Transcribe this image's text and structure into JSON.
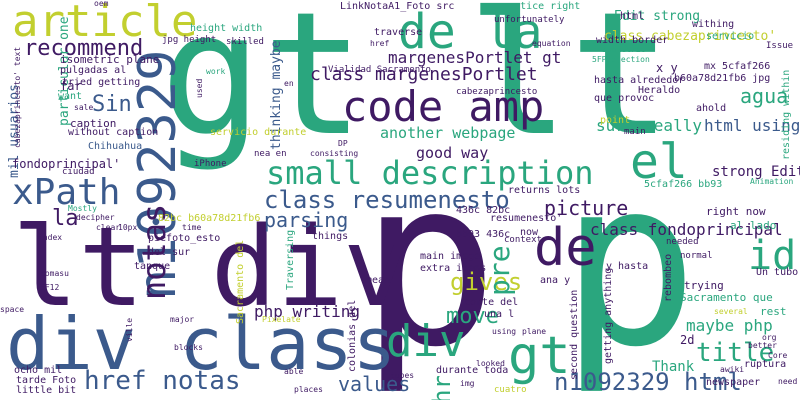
{
  "words": [
    {
      "text": "gt lt",
      "color": "#2aa67e",
      "rotate": 0,
      "bold": false
    },
    {
      "text": "p",
      "color": "#3f1a63",
      "rotate": 0,
      "bold": false
    },
    {
      "text": "p",
      "color": "#2aa67e",
      "rotate": 0,
      "bold": false
    },
    {
      "text": "lt div",
      "color": "#3f1a63",
      "rotate": 0,
      "bold": false
    },
    {
      "text": "div class",
      "color": "#3b5a8c",
      "rotate": 0,
      "bold": false
    },
    {
      "text": "code amp",
      "color": "#3f1a63",
      "rotate": 0,
      "bold": false
    },
    {
      "text": "de la",
      "color": "#2aa67e",
      "rotate": 0,
      "bold": false
    },
    {
      "text": "article",
      "color": "#c2cf2f",
      "rotate": 0,
      "bold": false
    },
    {
      "text": "n1092329",
      "color": "#3b5a8c",
      "rotate": -90,
      "bold": false
    },
    {
      "text": "notas",
      "color": "#3f1a63",
      "rotate": -90,
      "bold": false
    },
    {
      "text": "xPath",
      "color": "#3b5a8c",
      "rotate": 0,
      "bold": false
    },
    {
      "text": "small description",
      "color": "#2aa67e",
      "rotate": 0,
      "bold": false
    },
    {
      "text": "el",
      "color": "#2aa67e",
      "rotate": 0,
      "bold": false
    },
    {
      "text": "class resumenesto",
      "color": "#3b5a8c",
      "rotate": 0,
      "bold": false
    },
    {
      "text": "de",
      "color": "#3f1a63",
      "rotate": 0,
      "bold": false
    },
    {
      "text": "id",
      "color": "#2aa67e",
      "rotate": 0,
      "bold": false
    },
    {
      "text": "div",
      "color": "#2aa67e",
      "rotate": 0,
      "bold": false
    },
    {
      "text": "gt",
      "color": "#2aa67e",
      "rotate": 0,
      "bold": false
    },
    {
      "text": "href notas",
      "color": "#3b5a8c",
      "rotate": 0,
      "bold": false
    },
    {
      "text": "n1092329 html",
      "color": "#3b5a8c",
      "rotate": 0,
      "bold": false
    },
    {
      "text": "recommend",
      "color": "#3f1a63",
      "rotate": 0,
      "bold": false
    },
    {
      "text": "class margenesPortlet",
      "color": "#3f1a63",
      "rotate": 0,
      "bold": false
    },
    {
      "text": "margenesPortlet gt",
      "color": "#3f1a63",
      "rotate": 0,
      "bold": false
    },
    {
      "text": "Sin",
      "color": "#3b5a8c",
      "rotate": 0,
      "bold": false
    },
    {
      "text": "agua",
      "color": "#2aa67e",
      "rotate": 0,
      "bold": false
    },
    {
      "text": "la",
      "color": "#3f1a63",
      "rotate": 0,
      "bold": false
    },
    {
      "text": "parsing",
      "color": "#3b5a8c",
      "rotate": 0,
      "bold": false
    },
    {
      "text": "picture",
      "color": "#3f1a63",
      "rotate": 0,
      "bold": false
    },
    {
      "text": "class fondoprincipal",
      "color": "#3f1a63",
      "rotate": 0,
      "bold": false
    },
    {
      "text": "gives",
      "color": "#c2cf2f",
      "rotate": 0,
      "bold": false
    },
    {
      "text": "pre",
      "color": "#2aa67e",
      "rotate": -90,
      "bold": false
    },
    {
      "text": "move",
      "color": "#2aa67e",
      "rotate": 0,
      "bold": false
    },
    {
      "text": "hr",
      "color": "#2aa67e",
      "rotate": -90,
      "bold": false
    },
    {
      "text": "title",
      "color": "#2aa67e",
      "rotate": 0,
      "bold": false
    },
    {
      "text": "values",
      "color": "#3b5a8c",
      "rotate": 0,
      "bold": false
    },
    {
      "text": "php writing",
      "color": "#3f1a63",
      "rotate": 0,
      "bold": false
    },
    {
      "text": "maybe php",
      "color": "#2aa67e",
      "rotate": 0,
      "bold": false
    },
    {
      "text": "html using",
      "color": "#3b5a8c",
      "rotate": 0,
      "bold": false
    },
    {
      "text": "sure really",
      "color": "#2aa67e",
      "rotate": 0,
      "bold": false
    },
    {
      "text": "another webpage",
      "color": "#2aa67e",
      "rotate": 0,
      "bold": false
    },
    {
      "text": "good way",
      "color": "#3f1a63",
      "rotate": 0,
      "bold": false
    },
    {
      "text": "strong Edit",
      "color": "#3f1a63",
      "rotate": 0,
      "bold": false
    },
    {
      "text": "Edit strong",
      "color": "#2aa67e",
      "rotate": 0,
      "bold": false
    },
    {
      "text": "mil usuarios",
      "color": "#3b5a8c",
      "rotate": -90,
      "bold": false
    },
    {
      "text": "particular one",
      "color": "#2aa67e",
      "rotate": -90,
      "bold": false
    },
    {
      "text": "fondoprincipal'",
      "color": "#3f1a63",
      "rotate": 0,
      "bold": false
    },
    {
      "text": "class cabezaprincesto'",
      "color": "#c2cf2f",
      "rotate": 0,
      "bold": false
    },
    {
      "text": "thinking maybe",
      "color": "#3b5a8c",
      "rotate": -90,
      "bold": false
    },
    {
      "text": "far",
      "color": "#3f1a63",
      "rotate": 0,
      "bold": false
    },
    {
      "text": "want",
      "color": "#2aa67e",
      "rotate": 0,
      "bold": false
    },
    {
      "text": "caption",
      "color": "#3f1a63",
      "rotate": 0,
      "bold": false
    },
    {
      "text": "Thank",
      "color": "#2aa67e",
      "rotate": 0,
      "bold": false
    },
    {
      "text": "2d",
      "color": "#3f1a63",
      "rotate": 0,
      "bold": false
    },
    {
      "text": "rest",
      "color": "#2aa67e",
      "rotate": 0,
      "bold": false
    },
    {
      "text": "trying",
      "color": "#3f1a63",
      "rotate": 0,
      "bold": false
    },
    {
      "text": "right now",
      "color": "#3f1a63",
      "rotate": 0,
      "bold": false
    },
    {
      "text": "al lado",
      "color": "#2aa67e",
      "rotate": 0,
      "bold": false
    },
    {
      "text": "Sacramento que",
      "color": "#2aa67e",
      "rotate": 0,
      "bold": false
    },
    {
      "text": "LinkNotaA1_Foto src",
      "color": "#3f1a63",
      "rotate": 0,
      "bold": false
    },
    {
      "text": "practice right",
      "color": "#2aa67e",
      "rotate": 0,
      "bold": false
    },
    {
      "text": "unfortunately",
      "color": "#3f1a63",
      "rotate": 0,
      "bold": false
    },
    {
      "text": "height width",
      "color": "#2aa67e",
      "rotate": 0,
      "bold": false
    },
    {
      "text": "isometric plane",
      "color": "#3f1a63",
      "rotate": 0,
      "bold": false
    },
    {
      "text": "pulgadas al",
      "color": "#3f1a63",
      "rotate": 0,
      "bold": false
    },
    {
      "text": "tried getting",
      "color": "#3f1a63",
      "rotate": 0,
      "bold": false
    },
    {
      "text": "without caption",
      "color": "#3f1a63",
      "rotate": 0,
      "bold": false
    },
    {
      "text": "Chihuahua",
      "color": "#3b5a8c",
      "rotate": 0,
      "bold": false
    },
    {
      "text": "servicio durante",
      "color": "#c2cf2f",
      "rotate": 0,
      "bold": false
    },
    {
      "text": "iPhone",
      "color": "#3f1a63",
      "rotate": 0,
      "bold": false
    },
    {
      "text": "nea en",
      "color": "#3f1a63",
      "rotate": 0,
      "bold": false
    },
    {
      "text": "traverse",
      "color": "#3f1a63",
      "rotate": 0,
      "bold": false
    },
    {
      "text": "Vialidad Sacramento",
      "color": "#3f1a63",
      "rotate": 0,
      "bold": false
    },
    {
      "text": "cabezaprincesto",
      "color": "#3f1a63",
      "rotate": 0,
      "bold": false
    },
    {
      "text": "que provoc",
      "color": "#3f1a63",
      "rotate": 0,
      "bold": false
    },
    {
      "text": "hasta alrededor",
      "color": "#3f1a63",
      "rotate": 0,
      "bold": false
    },
    {
      "text": "width border",
      "color": "#3f1a63",
      "rotate": 0,
      "bold": false
    },
    {
      "text": "Heraldo",
      "color": "#3f1a63",
      "rotate": 0,
      "bold": false
    },
    {
      "text": "ahold",
      "color": "#3f1a63",
      "rotate": 0,
      "bold": false
    },
    {
      "text": "point",
      "color": "#c2cf2f",
      "rotate": 0,
      "bold": false
    },
    {
      "text": "main",
      "color": "#3f1a63",
      "rotate": 0,
      "bold": false
    },
    {
      "text": "5cfaf266 bb93",
      "color": "#2aa67e",
      "rotate": 0,
      "bold": false
    },
    {
      "text": "returns lots",
      "color": "#3f1a63",
      "rotate": 0,
      "bold": false
    },
    {
      "text": "436c 82bc",
      "color": "#3f1a63",
      "rotate": 0,
      "bold": false
    },
    {
      "text": "82bc b60a78d21fb6",
      "color": "#c2cf2f",
      "rotate": 0,
      "bold": false
    },
    {
      "text": "piefoto_esto",
      "color": "#3f1a63",
      "rotate": 0,
      "bold": false
    },
    {
      "text": "del sur",
      "color": "#3f1a63",
      "rotate": 0,
      "bold": false
    },
    {
      "text": "tanque",
      "color": "#3f1a63",
      "rotate": 0,
      "bold": false
    },
    {
      "text": "things",
      "color": "#3f1a63",
      "rotate": 0,
      "bold": false
    },
    {
      "text": "bb93 436c",
      "color": "#3f1a63",
      "rotate": 0,
      "bold": false
    },
    {
      "text": "main image",
      "color": "#3f1a63",
      "rotate": 0,
      "bold": false
    },
    {
      "text": "extra items",
      "color": "#3f1a63",
      "rotate": 0,
      "bold": false
    },
    {
      "text": "mean",
      "color": "#3f1a63",
      "rotate": 0,
      "bold": false
    },
    {
      "text": "corte del",
      "color": "#3f1a63",
      "rotate": 0,
      "bold": false
    },
    {
      "text": "una l",
      "color": "#3f1a63",
      "rotate": 0,
      "bold": false
    },
    {
      "text": "ana y",
      "color": "#3f1a63",
      "rotate": 0,
      "bold": false
    },
    {
      "text": "y hasta",
      "color": "#3f1a63",
      "rotate": 0,
      "bold": false
    },
    {
      "text": "now",
      "color": "#3f1a63",
      "rotate": 0,
      "bold": false
    },
    {
      "text": "context",
      "color": "#3f1a63",
      "rotate": 0,
      "bold": false
    },
    {
      "text": "resumenesto'",
      "color": "#3f1a63",
      "rotate": 0,
      "bold": false
    },
    {
      "text": "durante toda",
      "color": "#3f1a63",
      "rotate": 0,
      "bold": false
    },
    {
      "text": "ocho mil",
      "color": "#3f1a63",
      "rotate": 0,
      "bold": false
    },
    {
      "text": "tarde Foto",
      "color": "#3f1a63",
      "rotate": 0,
      "bold": false
    },
    {
      "text": "little bit",
      "color": "#3f1a63",
      "rotate": 0,
      "bold": false
    },
    {
      "text": "cuatro",
      "color": "#c2cf2f",
      "rotate": 0,
      "bold": false
    },
    {
      "text": "newspaper",
      "color": "#3f1a63",
      "rotate": 0,
      "bold": false
    },
    {
      "text": "ruptura",
      "color": "#3f1a63",
      "rotate": 0,
      "bold": false
    },
    {
      "text": "Un tubo",
      "color": "#3f1a63",
      "rotate": 0,
      "bold": false
    },
    {
      "text": "rebombeo",
      "color": "#3f1a63",
      "rotate": -90,
      "bold": false
    },
    {
      "text": "getting anything",
      "color": "#3f1a63",
      "rotate": -90,
      "bold": false
    },
    {
      "text": "second question",
      "color": "#3f1a63",
      "rotate": -90,
      "bold": false
    },
    {
      "text": "colonias del",
      "color": "#3f1a63",
      "rotate": -90,
      "bold": false
    },
    {
      "text": "Sacramento del",
      "color": "#c2cf2f",
      "rotate": -90,
      "bold": false
    },
    {
      "text": "Traversing",
      "color": "#2aa67e",
      "rotate": -90,
      "bold": false
    },
    {
      "text": "x y",
      "color": "#3f1a63",
      "rotate": 0,
      "bold": false
    },
    {
      "text": "mx 5cfaf266",
      "color": "#3f1a63",
      "rotate": 0,
      "bold": false
    },
    {
      "text": "b60a78d21fb6 jpg",
      "color": "#3f1a63",
      "rotate": 0,
      "bold": false
    },
    {
      "text": "html",
      "color": "#3f1a63",
      "rotate": 0,
      "bold": false
    },
    {
      "text": "withing",
      "color": "#3f1a63",
      "rotate": 0,
      "bold": false
    },
    {
      "text": "servicio",
      "color": "#2aa67e",
      "rotate": 0,
      "bold": false
    },
    {
      "text": "Issue",
      "color": "#3f1a63",
      "rotate": 0,
      "bold": false
    },
    {
      "text": "residing within",
      "color": "#2aa67e",
      "rotate": -90,
      "bold": false
    },
    {
      "text": "needed",
      "color": "#3f1a63",
      "rotate": 0,
      "bold": false
    },
    {
      "text": "normal",
      "color": "#3f1a63",
      "rotate": 0,
      "bold": false
    },
    {
      "text": "Animation",
      "color": "#2aa67e",
      "rotate": 0,
      "bold": false
    },
    {
      "text": "better",
      "color": "#3f1a63",
      "rotate": 0,
      "bold": false
    },
    {
      "text": "Core",
      "color": "#3f1a63",
      "rotate": 0,
      "bold": false
    },
    {
      "text": "org",
      "color": "#3f1a63",
      "rotate": 0,
      "bold": false
    },
    {
      "text": "awiki",
      "color": "#3f1a63",
      "rotate": 0,
      "bold": false
    },
    {
      "text": "need",
      "color": "#3f1a63",
      "rotate": 0,
      "bold": false
    },
    {
      "text": "several",
      "color": "#c2cf2f",
      "rotate": 0,
      "bold": false
    },
    {
      "text": "ma",
      "color": "#2aa67e",
      "rotate": 0,
      "bold": false
    },
    {
      "text": "oem",
      "color": "#3f1a63",
      "rotate": 0,
      "bold": false
    },
    {
      "text": "jpg height",
      "color": "#3f1a63",
      "rotate": 0,
      "bold": false
    },
    {
      "text": "skilled",
      "color": "#3f1a63",
      "rotate": 0,
      "bold": false
    },
    {
      "text": "equation",
      "color": "#3f1a63",
      "rotate": 0,
      "bold": false
    },
    {
      "text": "isometric",
      "color": "#2aa67e",
      "rotate": 0,
      "bold": false
    },
    {
      "text": "5FProjection",
      "color": "#2aa67e",
      "rotate": 0,
      "bold": false
    },
    {
      "text": "href",
      "color": "#3f1a63",
      "rotate": 0,
      "bold": false
    },
    {
      "text": "sale",
      "color": "#3f1a63",
      "rotate": 0,
      "bold": false
    },
    {
      "text": "cabezaprincesto' text",
      "color": "#3f1a63",
      "rotate": -90,
      "bold": false
    },
    {
      "text": "ciudad",
      "color": "#3f1a63",
      "rotate": 0,
      "bold": false
    },
    {
      "text": "Mostly",
      "color": "#2aa67e",
      "rotate": 0,
      "bold": false
    },
    {
      "text": "decipher",
      "color": "#3f1a63",
      "rotate": 0,
      "bold": false
    },
    {
      "text": "index",
      "color": "#3f1a63",
      "rotate": 0,
      "bold": false
    },
    {
      "text": "clear",
      "color": "#3f1a63",
      "rotate": 0,
      "bold": false
    },
    {
      "text": "10px",
      "color": "#3f1a63",
      "rotate": 0,
      "bold": false
    },
    {
      "text": "time",
      "color": "#3f1a63",
      "rotate": 0,
      "bold": false
    },
    {
      "text": "tomasu",
      "color": "#3f1a63",
      "rotate": 0,
      "bold": false
    },
    {
      "text": "5F12",
      "color": "#3f1a63",
      "rotate": 0,
      "bold": false
    },
    {
      "text": "space",
      "color": "#3f1a63",
      "rotate": 0,
      "bold": false
    },
    {
      "text": "ville",
      "color": "#3f1a63",
      "rotate": -90,
      "bold": false
    },
    {
      "text": "major",
      "color": "#3f1a63",
      "rotate": 0,
      "bold": false
    },
    {
      "text": "blocks",
      "color": "#3f1a63",
      "rotate": 0,
      "bold": false
    },
    {
      "text": "Pixelate",
      "color": "#c2cf2f",
      "rotate": 0,
      "bold": false
    },
    {
      "text": "able",
      "color": "#3f1a63",
      "rotate": 0,
      "bold": false
    },
    {
      "text": "places",
      "color": "#3f1a63",
      "rotate": 0,
      "bold": false
    },
    {
      "text": "tubes",
      "color": "#3f1a63",
      "rotate": 0,
      "bold": false
    },
    {
      "text": "img",
      "color": "#3f1a63",
      "rotate": 0,
      "bold": false
    },
    {
      "text": "looked",
      "color": "#3f1a63",
      "rotate": 0,
      "bold": false
    },
    {
      "text": "using",
      "color": "#3f1a63",
      "rotate": 0,
      "bold": false
    },
    {
      "text": "plane",
      "color": "#3f1a63",
      "rotate": 0,
      "bold": false
    },
    {
      "text": "consisting",
      "color": "#3f1a63",
      "rotate": 0,
      "bold": false
    },
    {
      "text": "DP",
      "color": "#3f1a63",
      "rotate": 0,
      "bold": false
    },
    {
      "text": "en",
      "color": "#3f1a63",
      "rotate": 0,
      "bold": false
    },
    {
      "text": "work",
      "color": "#2aa67e",
      "rotate": 0,
      "bold": false
    },
    {
      "text": "used",
      "color": "#3f1a63",
      "rotate": -90,
      "bold": false
    }
  ]
}
